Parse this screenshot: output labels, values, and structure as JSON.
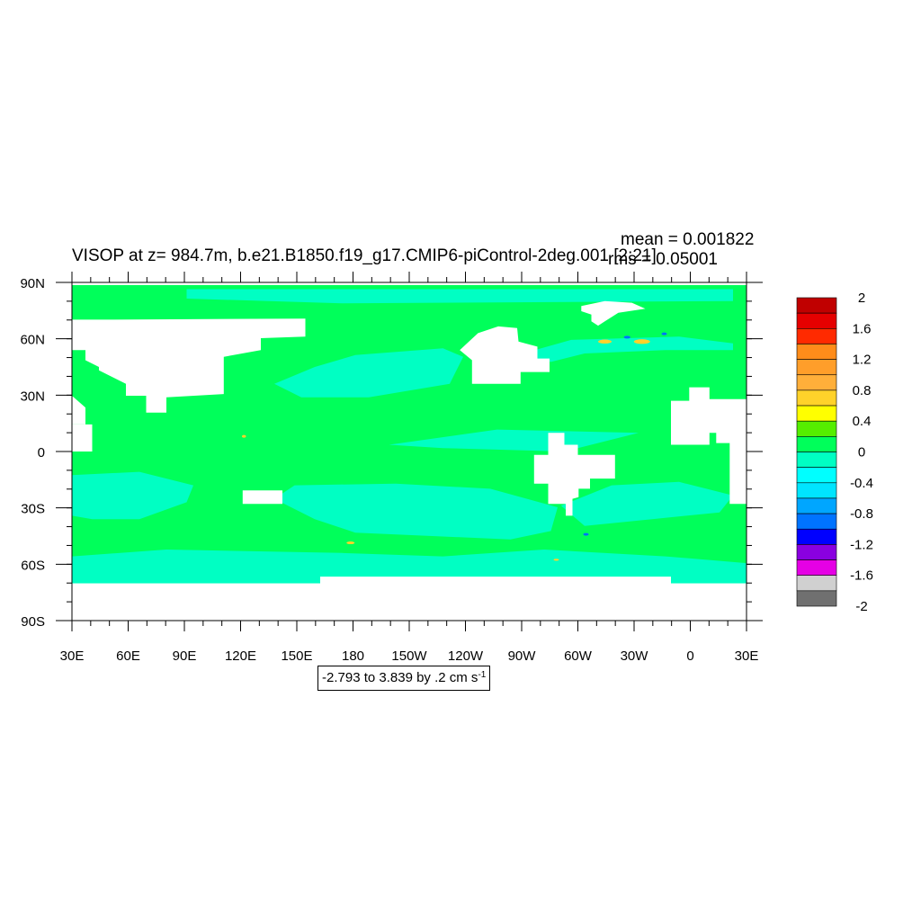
{
  "chart_data": {
    "type": "heatmap",
    "title": "VISOP at z= 984.7m, b.e21.B1850.f19_g17.CMIP6-piControl-2deg.001 [2:21]",
    "stats": {
      "mean": "mean = 0.001822",
      "rms": "rms = 0.05001"
    },
    "range_label": {
      "text": "-2.793 to 3.839 by .2 cm s",
      "exponent": "-1"
    },
    "x_axis": {
      "ticks": [
        "30E",
        "60E",
        "90E",
        "120E",
        "150E",
        "180",
        "150W",
        "120W",
        "90W",
        "60W",
        "30W",
        "0",
        "30E"
      ],
      "range_lon_east": [
        30,
        390
      ]
    },
    "y_axis": {
      "ticks": [
        "90N",
        "60N",
        "30N",
        "0",
        "30S",
        "60S",
        "90S"
      ],
      "range_lat": [
        90,
        -90
      ]
    },
    "colorbar": {
      "labels": [
        "2",
        "1.6",
        "1.2",
        "0.8",
        "0.4",
        "0",
        "-0.4",
        "-0.8",
        "-1.2",
        "-1.6",
        "-2"
      ],
      "colors": [
        "#C00000",
        "#E50000",
        "#FF2A00",
        "#FF8C1A",
        "#FF9E2A",
        "#FFAF3A",
        "#FFD22A",
        "#FFFF00",
        "#55EE00",
        "#00FF5A",
        "#00FFC3",
        "#00FFFF",
        "#00E5FF",
        "#00A6FF",
        "#0073FF",
        "#0000FF",
        "#8A00E0",
        "#E500E5",
        "#D0D0D0",
        "#707070"
      ]
    },
    "fill": {
      "ocean_base": "#00FF5A",
      "ocean_band": "#00FFC3",
      "land": "#FFFFFF",
      "hotspot_warm": "#FFD22A",
      "hotspot_cool": "#0073FF"
    }
  }
}
